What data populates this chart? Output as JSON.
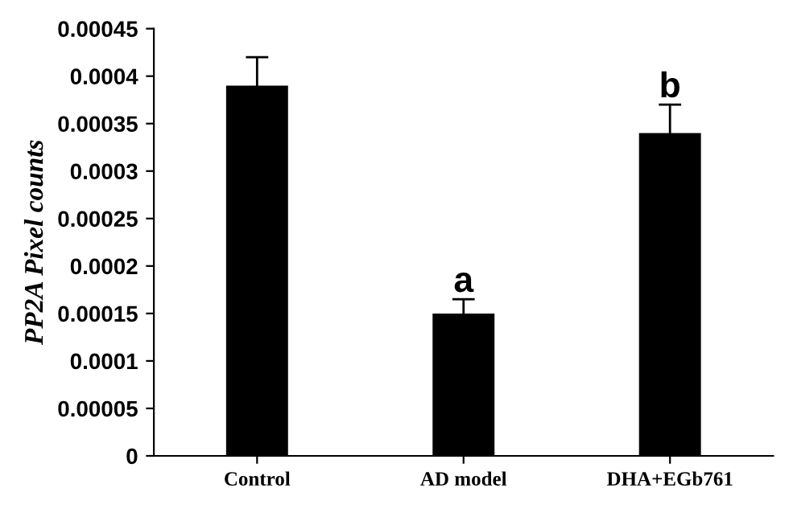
{
  "chart_data": {
    "type": "bar",
    "ylabel": "PP2A Pixel counts",
    "categories": [
      "Control",
      "AD model",
      "DHA+EGb761"
    ],
    "values": [
      0.00039,
      0.00015,
      0.00034
    ],
    "errors": [
      3e-05,
      1.5e-05,
      3e-05
    ],
    "color": "#000000",
    "ylim": [
      0,
      0.00045
    ],
    "yticks": [
      {
        "value": 0,
        "label": "0"
      },
      {
        "value": 5e-05,
        "label": "0.00005"
      },
      {
        "value": 0.0001,
        "label": "0.0001"
      },
      {
        "value": 0.00015,
        "label": "0.00015"
      },
      {
        "value": 0.0002,
        "label": "0.0002"
      },
      {
        "value": 0.00025,
        "label": "0.00025"
      },
      {
        "value": 0.0003,
        "label": "0.0003"
      },
      {
        "value": 0.00035,
        "label": "0.00035"
      },
      {
        "value": 0.0004,
        "label": "0.0004"
      },
      {
        "value": 0.00045,
        "label": "0.00045"
      }
    ],
    "annotations": [
      {
        "text": "a",
        "x": "AD model",
        "y": 0.000165
      },
      {
        "text": "b",
        "x": "DHA+EGb761",
        "y": 0.00037
      }
    ],
    "grid": false,
    "legend": false
  }
}
